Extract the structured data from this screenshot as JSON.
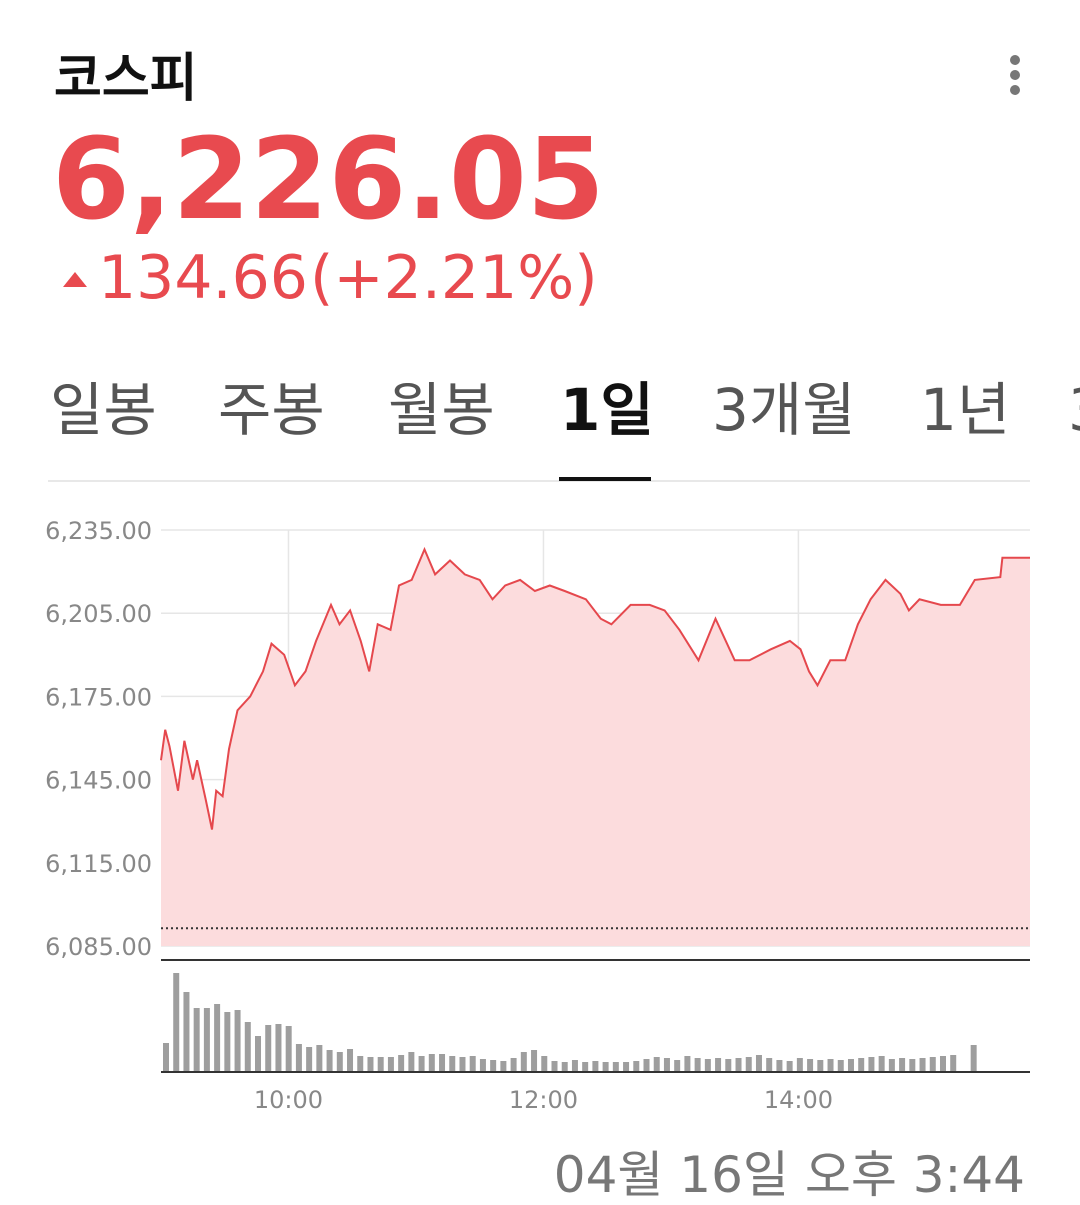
{
  "header": {
    "title": "코스피",
    "price": "6,226.05",
    "change": "134.66",
    "change_pct": "(+2.21%)"
  },
  "tabs": {
    "items": [
      "일봉",
      "주봉",
      "월봉",
      "1일",
      "3개월",
      "1년",
      "3"
    ],
    "active": 3
  },
  "timestamp": "04월 16일 오후 3:44",
  "chart_data": [
    {
      "type": "line",
      "area": true,
      "color": "#e5484d",
      "fill": "#fcdcdd",
      "x": [
        540,
        542,
        544,
        548,
        551,
        555,
        557,
        561,
        564,
        566,
        569,
        572,
        576,
        582,
        588,
        592,
        598,
        603,
        608,
        613,
        620,
        624,
        629,
        634,
        638,
        642,
        648,
        652,
        658,
        664,
        669,
        676,
        683,
        690,
        696,
        702,
        709,
        716,
        723,
        730,
        740,
        747,
        752,
        761,
        770,
        777,
        784,
        793,
        801,
        810,
        817,
        827,
        836,
        841,
        845,
        849,
        855,
        862,
        868,
        874,
        881,
        888,
        892,
        897,
        907,
        916,
        923,
        935,
        936,
        949
      ],
      "values": [
        6152,
        6163,
        6157,
        6141,
        6159,
        6145,
        6152,
        6138,
        6127,
        6141,
        6139,
        6156,
        6170,
        6175,
        6184,
        6194,
        6190,
        6179,
        6184,
        6195,
        6208,
        6201,
        6206,
        6195,
        6184,
        6201,
        6199,
        6215,
        6217,
        6228,
        6219,
        6224,
        6219,
        6217,
        6210,
        6215,
        6217,
        6213,
        6215,
        6213,
        6210,
        6203,
        6201,
        6208,
        6208,
        6206,
        6199,
        6188,
        6203,
        6188,
        6188,
        6192,
        6195,
        6192,
        6184,
        6179,
        6188,
        6188,
        6201,
        6210,
        6217,
        6212,
        6206,
        6210,
        6208,
        6208,
        6217,
        6218,
        6225,
        6225
      ],
      "baseline": 6091.39,
      "xlim": [
        540,
        949
      ],
      "xticks": [
        {
          "value": 600,
          "label": "10:00"
        },
        {
          "value": 720,
          "label": "12:00"
        },
        {
          "value": 840,
          "label": "14:00"
        }
      ],
      "ylim": [
        6085,
        6235
      ],
      "yticks": [
        {
          "value": 6085,
          "label": "6,085.00"
        },
        {
          "value": 6115,
          "label": "6,115.00"
        },
        {
          "value": 6145,
          "label": "6,145.00"
        },
        {
          "value": 6175,
          "label": "6,175.00"
        },
        {
          "value": 6205,
          "label": "6,205.00"
        },
        {
          "value": 6235,
          "label": "6,235.00"
        }
      ],
      "grid": true
    },
    {
      "type": "bar",
      "color": "#9e9e9e",
      "ylim": [
        0,
        110
      ],
      "values": [
        29,
        99,
        80,
        64,
        64,
        68,
        60,
        62,
        50,
        36,
        47,
        48,
        46,
        28,
        25,
        27,
        22,
        20,
        23,
        16,
        15,
        15,
        15,
        17,
        20,
        16,
        18,
        18,
        16,
        15,
        16,
        13,
        12,
        11,
        14,
        20,
        22,
        16,
        11,
        10,
        12,
        10,
        11,
        10,
        10,
        10,
        11,
        13,
        15,
        14,
        12,
        16,
        14,
        13,
        14,
        13,
        14,
        15,
        17,
        14,
        12,
        11,
        14,
        13,
        12,
        13,
        12,
        13,
        14,
        15,
        16,
        13,
        14,
        13,
        14,
        15,
        16,
        17,
        null,
        27
      ]
    }
  ]
}
